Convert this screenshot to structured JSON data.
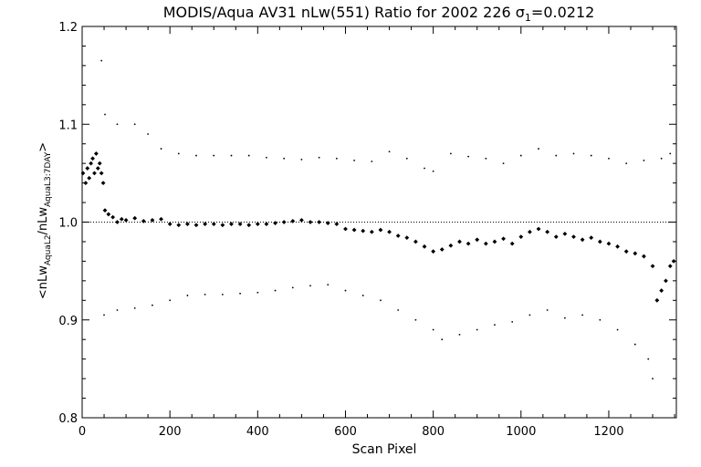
{
  "chart_data": {
    "type": "scatter",
    "title": {
      "prefix": "MODIS/Aqua AV31 nLw(551) Ratio for 2002 226 ",
      "sigma": "σ",
      "sigma_sub": "1",
      "suffix": "=0.0212"
    },
    "xlabel": "Scan Pixel",
    "ylabel": {
      "open": "<nLw",
      "num_sub": "AquaL2",
      "mid": "/nLw",
      "den_sub": "AquaL3:7DAY",
      "close": ">"
    },
    "xlim": [
      0,
      1354
    ],
    "ylim": [
      0.8,
      1.2
    ],
    "xticks": [
      0,
      200,
      400,
      600,
      800,
      1000,
      1200
    ],
    "xtick_labels": [
      "0",
      "200",
      "400",
      "600",
      "800",
      "1000",
      "1200"
    ],
    "yticks": [
      0.8,
      0.9,
      1.0,
      1.1,
      1.2
    ],
    "ytick_labels": [
      "0.8",
      "0.9",
      "1.0",
      "1.1",
      "1.2"
    ],
    "reference_line": 1.0,
    "grid": false,
    "legend": "none",
    "series": [
      {
        "role": "mean ratio",
        "marker": "diamond",
        "points": [
          [
            2,
            1.05
          ],
          [
            8,
            1.04
          ],
          [
            12,
            1.055
          ],
          [
            16,
            1.045
          ],
          [
            20,
            1.06
          ],
          [
            24,
            1.065
          ],
          [
            28,
            1.05
          ],
          [
            32,
            1.07
          ],
          [
            36,
            1.055
          ],
          [
            40,
            1.06
          ],
          [
            44,
            1.05
          ],
          [
            48,
            1.04
          ],
          [
            52,
            1.012
          ],
          [
            60,
            1.008
          ],
          [
            70,
            1.005
          ],
          [
            80,
            1.0
          ],
          [
            90,
            1.003
          ],
          [
            100,
            1.002
          ],
          [
            120,
            1.004
          ],
          [
            140,
            1.001
          ],
          [
            160,
            1.002
          ],
          [
            180,
            1.003
          ],
          [
            200,
            0.998
          ],
          [
            220,
            0.997
          ],
          [
            240,
            0.998
          ],
          [
            260,
            0.997
          ],
          [
            280,
            0.998
          ],
          [
            300,
            0.998
          ],
          [
            320,
            0.997
          ],
          [
            340,
            0.998
          ],
          [
            360,
            0.998
          ],
          [
            380,
            0.997
          ],
          [
            400,
            0.998
          ],
          [
            420,
            0.998
          ],
          [
            440,
            0.999
          ],
          [
            460,
            1.0
          ],
          [
            480,
            1.001
          ],
          [
            500,
            1.002
          ],
          [
            520,
            1.0
          ],
          [
            540,
            1.0
          ],
          [
            560,
            0.999
          ],
          [
            580,
            0.998
          ],
          [
            600,
            0.993
          ],
          [
            620,
            0.992
          ],
          [
            640,
            0.991
          ],
          [
            660,
            0.99
          ],
          [
            680,
            0.992
          ],
          [
            700,
            0.99
          ],
          [
            720,
            0.986
          ],
          [
            740,
            0.984
          ],
          [
            760,
            0.98
          ],
          [
            780,
            0.975
          ],
          [
            800,
            0.97
          ],
          [
            820,
            0.972
          ],
          [
            840,
            0.976
          ],
          [
            860,
            0.98
          ],
          [
            880,
            0.978
          ],
          [
            900,
            0.982
          ],
          [
            920,
            0.978
          ],
          [
            940,
            0.98
          ],
          [
            960,
            0.983
          ],
          [
            980,
            0.978
          ],
          [
            1000,
            0.985
          ],
          [
            1020,
            0.99
          ],
          [
            1040,
            0.993
          ],
          [
            1060,
            0.99
          ],
          [
            1080,
            0.985
          ],
          [
            1100,
            0.988
          ],
          [
            1120,
            0.985
          ],
          [
            1140,
            0.982
          ],
          [
            1160,
            0.984
          ],
          [
            1180,
            0.98
          ],
          [
            1200,
            0.978
          ],
          [
            1220,
            0.975
          ],
          [
            1240,
            0.97
          ],
          [
            1260,
            0.968
          ],
          [
            1280,
            0.965
          ],
          [
            1300,
            0.955
          ],
          [
            1310,
            0.92
          ],
          [
            1320,
            0.93
          ],
          [
            1330,
            0.94
          ],
          [
            1340,
            0.955
          ],
          [
            1348,
            0.96
          ]
        ]
      },
      {
        "role": "upper envelope",
        "marker": "dot",
        "points": [
          [
            44,
            1.165
          ],
          [
            52,
            1.11
          ],
          [
            80,
            1.1
          ],
          [
            120,
            1.1
          ],
          [
            150,
            1.09
          ],
          [
            180,
            1.075
          ],
          [
            220,
            1.07
          ],
          [
            260,
            1.068
          ],
          [
            300,
            1.068
          ],
          [
            340,
            1.068
          ],
          [
            380,
            1.068
          ],
          [
            420,
            1.066
          ],
          [
            460,
            1.065
          ],
          [
            500,
            1.064
          ],
          [
            540,
            1.066
          ],
          [
            580,
            1.065
          ],
          [
            620,
            1.063
          ],
          [
            660,
            1.062
          ],
          [
            700,
            1.072
          ],
          [
            740,
            1.065
          ],
          [
            780,
            1.055
          ],
          [
            800,
            1.052
          ],
          [
            840,
            1.07
          ],
          [
            880,
            1.067
          ],
          [
            920,
            1.065
          ],
          [
            960,
            1.06
          ],
          [
            1000,
            1.068
          ],
          [
            1040,
            1.075
          ],
          [
            1080,
            1.068
          ],
          [
            1120,
            1.07
          ],
          [
            1160,
            1.068
          ],
          [
            1200,
            1.065
          ],
          [
            1240,
            1.06
          ],
          [
            1280,
            1.063
          ],
          [
            1320,
            1.065
          ],
          [
            1340,
            1.07
          ]
        ]
      },
      {
        "role": "lower envelope",
        "marker": "dot",
        "points": [
          [
            50,
            0.905
          ],
          [
            80,
            0.91
          ],
          [
            120,
            0.912
          ],
          [
            160,
            0.915
          ],
          [
            200,
            0.92
          ],
          [
            240,
            0.925
          ],
          [
            280,
            0.926
          ],
          [
            320,
            0.926
          ],
          [
            360,
            0.927
          ],
          [
            400,
            0.928
          ],
          [
            440,
            0.93
          ],
          [
            480,
            0.933
          ],
          [
            520,
            0.935
          ],
          [
            560,
            0.936
          ],
          [
            600,
            0.93
          ],
          [
            640,
            0.925
          ],
          [
            680,
            0.92
          ],
          [
            720,
            0.91
          ],
          [
            760,
            0.9
          ],
          [
            800,
            0.89
          ],
          [
            820,
            0.88
          ],
          [
            860,
            0.885
          ],
          [
            900,
            0.89
          ],
          [
            940,
            0.895
          ],
          [
            980,
            0.898
          ],
          [
            1020,
            0.905
          ],
          [
            1060,
            0.91
          ],
          [
            1100,
            0.902
          ],
          [
            1140,
            0.905
          ],
          [
            1180,
            0.9
          ],
          [
            1220,
            0.89
          ],
          [
            1260,
            0.875
          ],
          [
            1290,
            0.86
          ],
          [
            1300,
            0.84
          ]
        ]
      }
    ]
  }
}
